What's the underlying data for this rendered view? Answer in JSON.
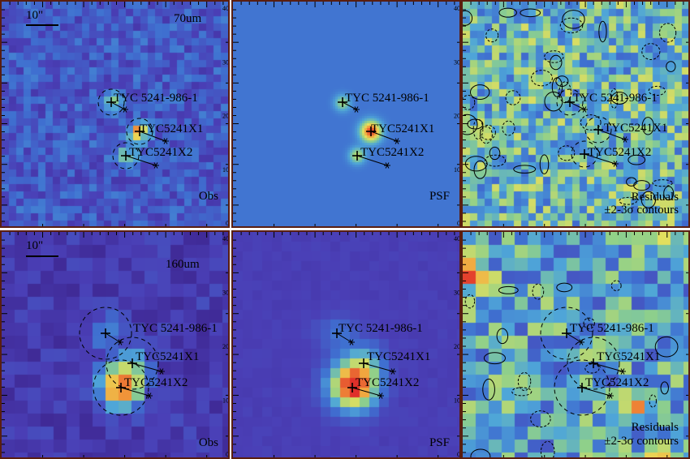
{
  "figure": {
    "rows": [
      {
        "band": "70um",
        "scalebar": "10\"",
        "panels": [
          {
            "kind": "obs",
            "corner_label": "Obs"
          },
          {
            "kind": "psf",
            "corner_label": "PSF"
          },
          {
            "kind": "residual",
            "corner_label_1": "Residuals",
            "corner_label_2": "±2-3σ contours"
          }
        ]
      },
      {
        "band": "160um",
        "scalebar": "10\"",
        "panels": [
          {
            "kind": "obs",
            "corner_label": "Obs"
          },
          {
            "kind": "psf",
            "corner_label": "PSF"
          },
          {
            "kind": "residual",
            "corner_label_1": "Residuals",
            "corner_label_2": "±2-3σ contours"
          }
        ]
      }
    ],
    "sources": [
      {
        "name": "TYC 5241-986-1"
      },
      {
        "name": "TYC5241X1"
      },
      {
        "name": "TYC5241X2"
      }
    ],
    "axis_ticks_right": [
      "40",
      "30",
      "20",
      "10",
      "0"
    ],
    "colormap": [
      "#3a1f86",
      "#4a3fb6",
      "#3f6fd0",
      "#4fa6d8",
      "#8fd08a",
      "#e9e05a",
      "#f29a3a",
      "#e0302a"
    ]
  }
}
